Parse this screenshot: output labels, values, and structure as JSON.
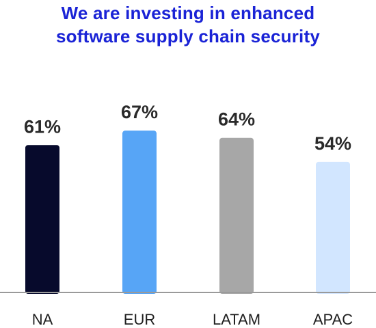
{
  "chart_data": {
    "type": "bar",
    "title_lines": [
      "We are investing in enhanced",
      "software supply chain security"
    ],
    "categories": [
      "NA",
      "EUR",
      "LATAM",
      "APAC"
    ],
    "values": [
      61,
      67,
      64,
      54
    ],
    "data_labels": [
      "61%",
      "67%",
      "64%",
      "54%"
    ],
    "colors": [
      "#070a2c",
      "#57a5f6",
      "#a7a7a7",
      "#d2e6ff"
    ],
    "baseline_color": "#9a9a9a",
    "xlabel": "",
    "ylabel": "",
    "ylim": [
      0,
      100
    ],
    "grid": false,
    "legend": "none"
  }
}
